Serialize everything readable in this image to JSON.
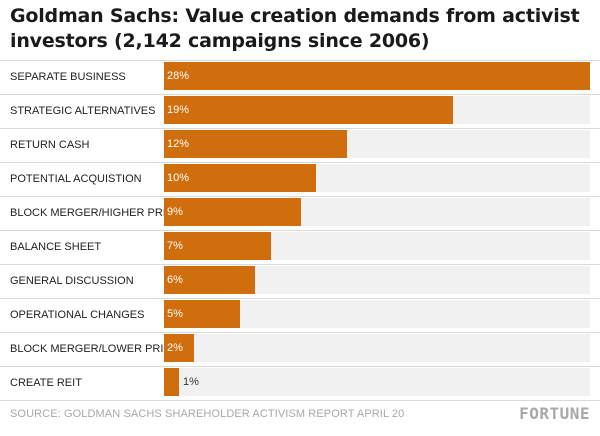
{
  "title": "Goldman Sachs: Value creation demands from activist investors (2,142 campaigns since 2006)",
  "source": "SOURCE: GOLDMAN SACHS SHAREHOLDER ACTIVISM REPORT APRIL 20",
  "brand": "FORTUNE",
  "colors": {
    "bar": "#d06d0c",
    "track": "#f1f1f1"
  },
  "chart_data": {
    "type": "bar",
    "orientation": "horizontal",
    "title": "Goldman Sachs: Value creation demands from activist investors (2,142 campaigns since 2006)",
    "xlim": [
      0,
      28
    ],
    "categories": [
      "SEPARATE BUSINESS",
      "STRATEGIC ALTERNATIVES",
      "RETURN CASH",
      "POTENTIAL ACQUISTION",
      "BLOCK MERGER/HIGHER PRICE",
      "BALANCE SHEET",
      "GENERAL DISCUSSION",
      "OPERATIONAL CHANGES",
      "BLOCK MERGER/LOWER PRICE",
      "CREATE REIT"
    ],
    "values": [
      28,
      19,
      12,
      10,
      9,
      7,
      6,
      5,
      2,
      1
    ],
    "labels": [
      "28%",
      "19%",
      "12%",
      "10%",
      "9%",
      "7%",
      "6%",
      "5%",
      "2%",
      "1%"
    ]
  }
}
